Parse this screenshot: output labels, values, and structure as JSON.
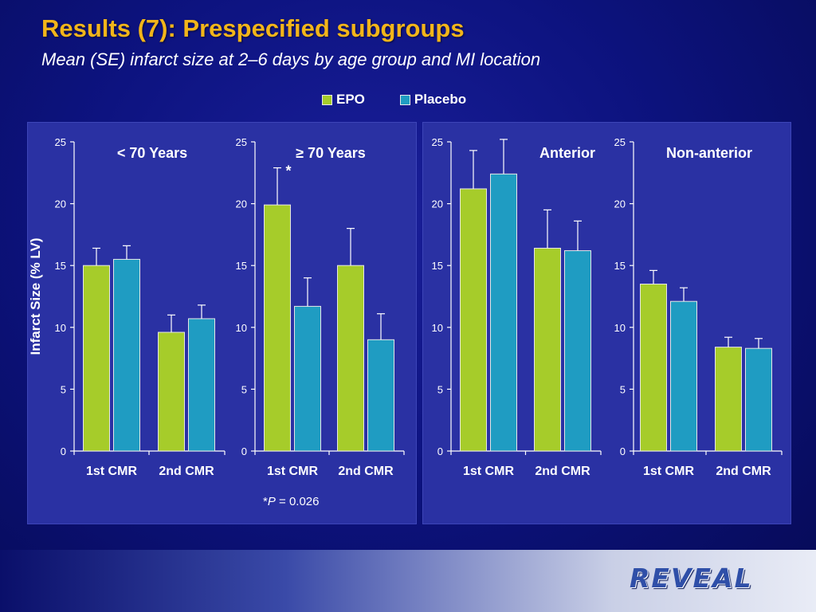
{
  "title": "Results (7): Prespecified subgroups",
  "subtitle": "Mean (SE) infarct size at 2–6 days by age group and MI location",
  "legend": [
    {
      "label": "EPO",
      "color": "#a6cc2a"
    },
    {
      "label": "Placebo",
      "color": "#1f9cc2"
    }
  ],
  "footnote": {
    "prefix": "*",
    "italic": "P",
    "suffix": " = 0.026"
  },
  "logo": "REVEAL",
  "chart_data": [
    {
      "type": "bar",
      "title": "< 70 Years",
      "ylabel": "Infarct Size (% LV)",
      "ylim": [
        0,
        25
      ],
      "yticks": [
        0,
        5,
        10,
        15,
        20,
        25
      ],
      "categories": [
        "1st CMR",
        "2nd CMR"
      ],
      "series": [
        {
          "name": "EPO",
          "values": [
            15.0,
            9.6
          ],
          "errors": [
            1.4,
            1.4
          ]
        },
        {
          "name": "Placebo",
          "values": [
            15.5,
            10.7
          ],
          "errors": [
            1.1,
            1.1
          ]
        }
      ],
      "annotations": []
    },
    {
      "type": "bar",
      "title": "≥ 70 Years",
      "ylabel": "",
      "ylim": [
        0,
        25
      ],
      "yticks": [
        0,
        5,
        10,
        15,
        20,
        25
      ],
      "categories": [
        "1st CMR",
        "2nd CMR"
      ],
      "series": [
        {
          "name": "EPO",
          "values": [
            19.9,
            15.0
          ],
          "errors": [
            3.0,
            3.0
          ]
        },
        {
          "name": "Placebo",
          "values": [
            11.7,
            9.0
          ],
          "errors": [
            2.3,
            2.1
          ]
        }
      ],
      "annotations": [
        "*"
      ]
    },
    {
      "type": "bar",
      "title": "Anterior",
      "ylabel": "",
      "ylim": [
        0,
        25
      ],
      "yticks": [
        0,
        5,
        10,
        15,
        20,
        25
      ],
      "categories": [
        "1st CMR",
        "2nd CMR"
      ],
      "series": [
        {
          "name": "EPO",
          "values": [
            21.2,
            16.4
          ],
          "errors": [
            3.1,
            3.1
          ]
        },
        {
          "name": "Placebo",
          "values": [
            22.4,
            16.2
          ],
          "errors": [
            2.8,
            2.4
          ]
        }
      ],
      "annotations": []
    },
    {
      "type": "bar",
      "title": "Non-anterior",
      "ylabel": "",
      "ylim": [
        0,
        25
      ],
      "yticks": [
        0,
        5,
        10,
        15,
        20,
        25
      ],
      "categories": [
        "1st CMR",
        "2nd CMR"
      ],
      "series": [
        {
          "name": "EPO",
          "values": [
            13.5,
            8.4
          ],
          "errors": [
            1.1,
            0.8
          ]
        },
        {
          "name": "Placebo",
          "values": [
            12.1,
            8.3
          ],
          "errors": [
            1.1,
            0.8
          ]
        }
      ],
      "annotations": []
    }
  ]
}
